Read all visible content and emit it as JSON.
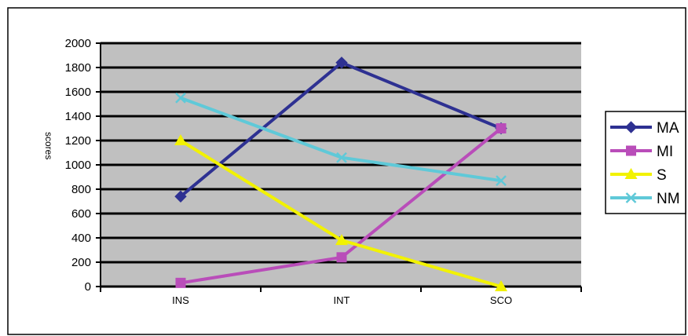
{
  "chart_data": {
    "type": "line",
    "categories": [
      "INS",
      "INT",
      "SCO"
    ],
    "series": [
      {
        "name": "MA",
        "values": [
          740,
          1840,
          1300
        ],
        "color": "#2e3192",
        "marker": "diamond"
      },
      {
        "name": "MI",
        "values": [
          30,
          240,
          1300
        ],
        "color": "#b94db9",
        "marker": "square"
      },
      {
        "name": "S",
        "values": [
          1200,
          380,
          0
        ],
        "color": "#f2f200",
        "marker": "triangle"
      },
      {
        "name": "NM",
        "values": [
          1550,
          1060,
          870
        ],
        "color": "#5fc9d8",
        "marker": "x"
      }
    ],
    "ylabel": "scores",
    "xlabel": "",
    "ylim": [
      0,
      2000
    ],
    "yticks": [
      "0",
      "200",
      "400",
      "600",
      "800",
      "1000",
      "1200",
      "1400",
      "1600",
      "1800",
      "2000"
    ],
    "grid": true,
    "legend": "right",
    "colors": {
      "plot_background": "#c0c0c0",
      "gridline": "#000000"
    }
  }
}
